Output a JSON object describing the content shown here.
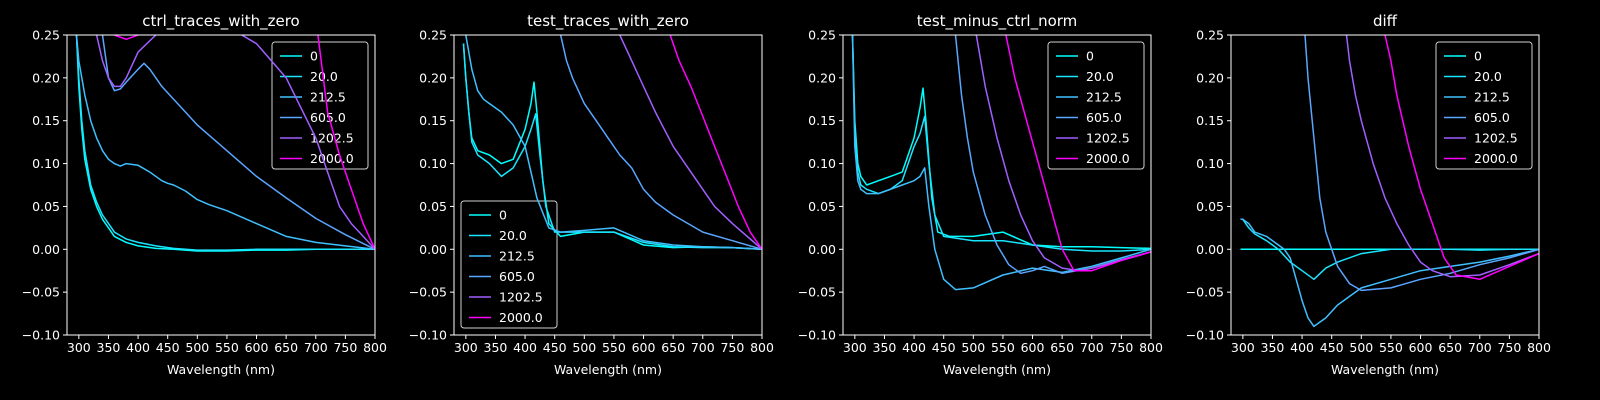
{
  "colors": {
    "background": "#000000",
    "axes": "#ffffff",
    "series": [
      "#00ffff",
      "#1ae5ff",
      "#40bfff",
      "#5aa5ff",
      "#a05fff",
      "#ff00ff"
    ]
  },
  "chart_data": [
    {
      "type": "line",
      "title": "ctrl_traces_with_zero",
      "xlabel": "Wavelength (nm)",
      "ylabel": "",
      "xlim": [
        280,
        800
      ],
      "ylim": [
        -0.1,
        0.25
      ],
      "xticks": [
        "300",
        "350",
        "400",
        "450",
        "500",
        "550",
        "600",
        "650",
        "700",
        "750",
        "800"
      ],
      "yticks": [
        "0.25",
        "0.20",
        "0.15",
        "0.10",
        "0.05",
        "0.00",
        "−0.05",
        "−0.10"
      ],
      "legend_placement": "upper-right",
      "series": [
        {
          "name": "0",
          "x": [
            296,
            300,
            305,
            310,
            320,
            330,
            340,
            350,
            360,
            380,
            400,
            430,
            460,
            500,
            550,
            600,
            650,
            700,
            750,
            800
          ],
          "y": [
            0.25,
            0.19,
            0.14,
            0.105,
            0.07,
            0.05,
            0.035,
            0.025,
            0.015,
            0.008,
            0.004,
            0.001,
            0.0,
            -0.002,
            -0.002,
            -0.001,
            -0.001,
            0.0,
            0.0,
            0.0
          ]
        },
        {
          "name": "20.0",
          "x": [
            296,
            300,
            305,
            310,
            320,
            330,
            340,
            350,
            360,
            380,
            400,
            430,
            460,
            500,
            550,
            600,
            650,
            700,
            750,
            800
          ],
          "y": [
            0.25,
            0.2,
            0.15,
            0.115,
            0.075,
            0.055,
            0.04,
            0.03,
            0.02,
            0.012,
            0.008,
            0.004,
            0.001,
            -0.001,
            -0.001,
            0.0,
            0.0,
            0.0,
            0.0,
            0.0
          ]
        },
        {
          "name": "212.5",
          "x": [
            296,
            300,
            305,
            310,
            320,
            330,
            340,
            350,
            360,
            370,
            380,
            400,
            420,
            440,
            450,
            460,
            480,
            500,
            520,
            550,
            580,
            600,
            650,
            700,
            750,
            800
          ],
          "y": [
            0.25,
            0.22,
            0.2,
            0.18,
            0.15,
            0.13,
            0.115,
            0.105,
            0.1,
            0.097,
            0.1,
            0.098,
            0.09,
            0.08,
            0.077,
            0.075,
            0.068,
            0.058,
            0.052,
            0.045,
            0.036,
            0.03,
            0.015,
            0.008,
            0.004,
            0.0
          ]
        },
        {
          "name": "605.0",
          "x": [
            340,
            350,
            360,
            370,
            380,
            400,
            410,
            420,
            440,
            460,
            480,
            500,
            550,
            600,
            650,
            700,
            750,
            800
          ],
          "y": [
            0.25,
            0.2,
            0.185,
            0.187,
            0.195,
            0.21,
            0.217,
            0.21,
            0.19,
            0.175,
            0.16,
            0.145,
            0.115,
            0.085,
            0.06,
            0.036,
            0.017,
            0.0
          ]
        },
        {
          "name": "1202.5",
          "x": [
            330,
            340,
            350,
            360,
            370,
            380,
            400,
            430,
            460,
            500,
            550,
            600,
            650,
            700,
            720,
            740,
            760,
            780,
            800
          ],
          "y": [
            0.25,
            0.22,
            0.2,
            0.19,
            0.19,
            0.2,
            0.23,
            0.25,
            0.27,
            0.27,
            0.26,
            0.24,
            0.2,
            0.13,
            0.09,
            0.05,
            0.03,
            0.015,
            0.0
          ]
        },
        {
          "name": "2000.0",
          "x": [
            360,
            380,
            400,
            410,
            420,
            700,
            720,
            740,
            760,
            780,
            800
          ],
          "y": [
            0.25,
            0.245,
            0.25,
            0.253,
            0.27,
            0.27,
            0.16,
            0.11,
            0.07,
            0.03,
            0.0
          ]
        }
      ]
    },
    {
      "type": "line",
      "title": "test_traces_with_zero",
      "xlabel": "Wavelength (nm)",
      "ylabel": "",
      "xlim": [
        280,
        800
      ],
      "ylim": [
        -0.1,
        0.25
      ],
      "xticks": [
        "300",
        "350",
        "400",
        "450",
        "500",
        "550",
        "600",
        "650",
        "700",
        "750",
        "800"
      ],
      "yticks": [
        "0.25",
        "0.20",
        "0.15",
        "0.10",
        "0.05",
        "0.00",
        "−0.05",
        "−0.10"
      ],
      "legend_placement": "lower-left",
      "series": [
        {
          "name": "0",
          "x": [
            296,
            300,
            305,
            310,
            320,
            340,
            360,
            380,
            400,
            410,
            415,
            420,
            430,
            440,
            460,
            500,
            550,
            600,
            650,
            700,
            750,
            800
          ],
          "y": [
            0.24,
            0.2,
            0.16,
            0.13,
            0.115,
            0.11,
            0.1,
            0.105,
            0.14,
            0.17,
            0.195,
            0.16,
            0.08,
            0.03,
            0.015,
            0.02,
            0.02,
            0.005,
            0.002,
            0.003,
            0.002,
            0.0
          ]
        },
        {
          "name": "20.0",
          "x": [
            296,
            300,
            305,
            310,
            320,
            340,
            360,
            380,
            400,
            410,
            418,
            425,
            435,
            450,
            500,
            550,
            600,
            650,
            700,
            750,
            800
          ],
          "y": [
            0.24,
            0.2,
            0.16,
            0.125,
            0.11,
            0.1,
            0.085,
            0.095,
            0.12,
            0.14,
            0.158,
            0.11,
            0.05,
            0.02,
            0.02,
            0.02,
            0.008,
            0.003,
            0.002,
            0.002,
            0.0
          ]
        },
        {
          "name": "212.5",
          "x": [
            300,
            310,
            320,
            330,
            340,
            360,
            380,
            400,
            420,
            440,
            460,
            500,
            550,
            600,
            650,
            700,
            750,
            800
          ],
          "y": [
            0.25,
            0.21,
            0.185,
            0.175,
            0.17,
            0.16,
            0.145,
            0.12,
            0.06,
            0.025,
            0.02,
            0.022,
            0.025,
            0.01,
            0.005,
            0.003,
            0.002,
            0.0
          ]
        },
        {
          "name": "605.0",
          "x": [
            460,
            470,
            480,
            500,
            520,
            540,
            560,
            580,
            600,
            620,
            650,
            700,
            750,
            800
          ],
          "y": [
            0.25,
            0.22,
            0.2,
            0.17,
            0.15,
            0.13,
            0.11,
            0.095,
            0.07,
            0.055,
            0.04,
            0.02,
            0.01,
            0.0
          ]
        },
        {
          "name": "1202.5",
          "x": [
            560,
            580,
            600,
            620,
            650,
            680,
            700,
            720,
            750,
            780,
            800
          ],
          "y": [
            0.25,
            0.22,
            0.19,
            0.16,
            0.12,
            0.09,
            0.07,
            0.05,
            0.03,
            0.012,
            0.0
          ]
        },
        {
          "name": "2000.0",
          "x": [
            645,
            660,
            680,
            700,
            720,
            740,
            760,
            780,
            800
          ],
          "y": [
            0.25,
            0.22,
            0.19,
            0.155,
            0.12,
            0.085,
            0.05,
            0.02,
            0.0
          ]
        }
      ]
    },
    {
      "type": "line",
      "title": "test_minus_ctrl_norm",
      "xlabel": "Wavelength (nm)",
      "ylabel": "",
      "xlim": [
        280,
        800
      ],
      "ylim": [
        -0.1,
        0.25
      ],
      "xticks": [
        "300",
        "350",
        "400",
        "450",
        "500",
        "550",
        "600",
        "650",
        "700",
        "750",
        "800"
      ],
      "yticks": [
        "0.25",
        "0.20",
        "0.15",
        "0.10",
        "0.05",
        "0.00",
        "−0.05",
        "−0.10"
      ],
      "legend_placement": "upper-right",
      "series": [
        {
          "name": "0",
          "x": [
            296,
            300,
            305,
            310,
            320,
            340,
            360,
            380,
            400,
            410,
            415,
            420,
            430,
            440,
            460,
            500,
            550,
            600,
            650,
            700,
            750,
            800
          ],
          "y": [
            0.25,
            0.15,
            0.1,
            0.085,
            0.075,
            0.08,
            0.085,
            0.09,
            0.13,
            0.165,
            0.188,
            0.15,
            0.06,
            0.02,
            0.015,
            0.015,
            0.02,
            0.005,
            0.003,
            0.003,
            0.002,
            0.001
          ]
        },
        {
          "name": "20.0",
          "x": [
            296,
            300,
            305,
            310,
            320,
            340,
            360,
            380,
            400,
            410,
            418,
            425,
            435,
            450,
            500,
            550,
            600,
            650,
            700,
            750,
            800
          ],
          "y": [
            0.25,
            0.14,
            0.09,
            0.075,
            0.07,
            0.065,
            0.07,
            0.08,
            0.12,
            0.135,
            0.155,
            0.1,
            0.04,
            0.015,
            0.01,
            0.01,
            0.005,
            0.0,
            -0.002,
            -0.002,
            0.0
          ]
        },
        {
          "name": "212.5",
          "x": [
            296,
            300,
            305,
            310,
            320,
            340,
            360,
            380,
            400,
            410,
            418,
            425,
            435,
            450,
            470,
            500,
            550,
            600,
            650,
            700,
            750,
            800
          ],
          "y": [
            0.25,
            0.12,
            0.08,
            0.07,
            0.065,
            0.065,
            0.07,
            0.075,
            0.08,
            0.085,
            0.095,
            0.05,
            0.0,
            -0.035,
            -0.047,
            -0.045,
            -0.03,
            -0.022,
            -0.027,
            -0.02,
            -0.01,
            0.0
          ]
        },
        {
          "name": "605.0",
          "x": [
            470,
            480,
            490,
            500,
            520,
            540,
            560,
            580,
            600,
            620,
            650,
            700,
            750,
            800
          ],
          "y": [
            0.25,
            0.18,
            0.13,
            0.09,
            0.04,
            0.005,
            -0.018,
            -0.028,
            -0.025,
            -0.02,
            -0.028,
            -0.022,
            -0.012,
            -0.003
          ]
        },
        {
          "name": "1202.5",
          "x": [
            505,
            520,
            540,
            560,
            580,
            600,
            620,
            650,
            680,
            700,
            750,
            800
          ],
          "y": [
            0.25,
            0.19,
            0.13,
            0.08,
            0.04,
            0.01,
            -0.01,
            -0.022,
            -0.025,
            -0.022,
            -0.013,
            -0.003
          ]
        },
        {
          "name": "2000.0",
          "x": [
            555,
            570,
            590,
            610,
            630,
            650,
            670,
            700,
            750,
            800
          ],
          "y": [
            0.25,
            0.2,
            0.15,
            0.1,
            0.05,
            0.0,
            -0.025,
            -0.025,
            -0.013,
            -0.003
          ]
        }
      ]
    },
    {
      "type": "line",
      "title": "diff",
      "xlabel": "Wavelength (nm)",
      "ylabel": "",
      "xlim": [
        280,
        800
      ],
      "ylim": [
        -0.1,
        0.25
      ],
      "xticks": [
        "300",
        "350",
        "400",
        "450",
        "500",
        "550",
        "600",
        "650",
        "700",
        "750",
        "800"
      ],
      "yticks": [
        "0.25",
        "0.20",
        "0.15",
        "0.10",
        "0.05",
        "0.00",
        "−0.05",
        "−0.10"
      ],
      "legend_placement": "upper-right",
      "series": [
        {
          "name": "0",
          "x": [
            296,
            800
          ],
          "y": [
            0.0,
            0.0
          ]
        },
        {
          "name": "20.0",
          "x": [
            296,
            300,
            310,
            320,
            340,
            360,
            380,
            400,
            420,
            440,
            460,
            500,
            550,
            600,
            650,
            700,
            750,
            800
          ],
          "y": [
            0.035,
            0.035,
            0.025,
            0.018,
            0.01,
            0.0,
            -0.015,
            -0.025,
            -0.035,
            -0.022,
            -0.015,
            -0.005,
            0.0,
            0.0,
            0.0,
            -0.001,
            0.0,
            0.0
          ]
        },
        {
          "name": "212.5",
          "x": [
            296,
            300,
            310,
            320,
            340,
            360,
            370,
            380,
            400,
            410,
            420,
            440,
            460,
            500,
            550,
            600,
            650,
            700,
            750,
            800
          ],
          "y": [
            0.035,
            0.035,
            0.03,
            0.02,
            0.015,
            0.005,
            0.0,
            -0.01,
            -0.06,
            -0.08,
            -0.09,
            -0.08,
            -0.065,
            -0.045,
            -0.035,
            -0.025,
            -0.02,
            -0.015,
            -0.008,
            0.0
          ]
        },
        {
          "name": "605.0",
          "x": [
            405,
            410,
            420,
            430,
            440,
            460,
            480,
            500,
            550,
            600,
            650,
            700,
            750,
            800
          ],
          "y": [
            0.25,
            0.2,
            0.13,
            0.06,
            0.02,
            -0.02,
            -0.04,
            -0.048,
            -0.045,
            -0.035,
            -0.028,
            -0.018,
            -0.01,
            0.0
          ]
        },
        {
          "name": "1202.5",
          "x": [
            475,
            480,
            490,
            500,
            520,
            540,
            560,
            580,
            600,
            620,
            650,
            700,
            750,
            800
          ],
          "y": [
            0.25,
            0.22,
            0.18,
            0.15,
            0.1,
            0.06,
            0.03,
            0.005,
            -0.015,
            -0.025,
            -0.032,
            -0.03,
            -0.018,
            -0.005
          ]
        },
        {
          "name": "2000.0",
          "x": [
            540,
            550,
            560,
            580,
            600,
            620,
            640,
            660,
            700,
            750,
            800
          ],
          "y": [
            0.25,
            0.22,
            0.18,
            0.12,
            0.07,
            0.03,
            -0.01,
            -0.03,
            -0.035,
            -0.02,
            -0.005
          ]
        }
      ]
    }
  ]
}
